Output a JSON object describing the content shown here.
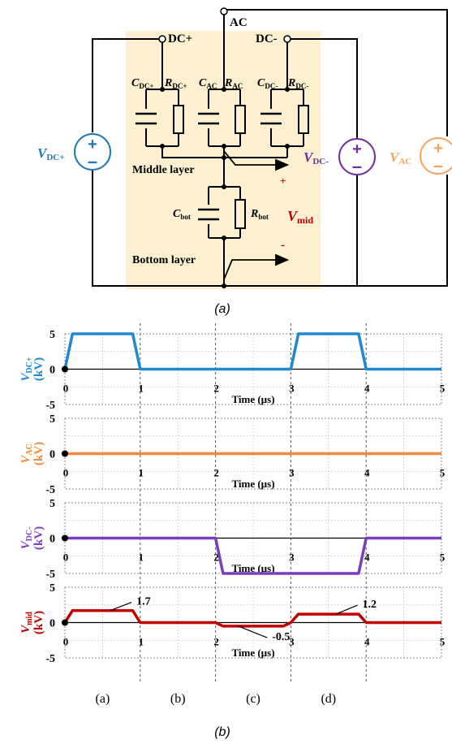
{
  "circuit": {
    "terminals": {
      "ac": "AC",
      "dc_plus": "DC+",
      "dc_minus": "DC-"
    },
    "components": {
      "c_dcp": {
        "main": "C",
        "sub": "DC+"
      },
      "r_dcp": {
        "main": "R",
        "sub": "DC+"
      },
      "c_ac": {
        "main": "C",
        "sub": "AC"
      },
      "r_ac": {
        "main": "R",
        "sub": "AC"
      },
      "c_dcm": {
        "main": "C",
        "sub": "DC-"
      },
      "r_dcm": {
        "main": "R",
        "sub": "DC-"
      },
      "c_bot": {
        "main": "C",
        "sub": "bot"
      },
      "r_bot": {
        "main": "R",
        "sub": "bot"
      }
    },
    "sources": {
      "vdcp": {
        "main": "V",
        "sub": "DC+",
        "color": "#1f77b4"
      },
      "vdcm": {
        "main": "V",
        "sub": "DC-",
        "color": "#7030a0"
      },
      "vac": {
        "main": "V",
        "sub": "AC",
        "color": "#f4a460"
      }
    },
    "layers": {
      "middle": "Middle layer",
      "bottom": "Bottom layer"
    },
    "vmid": {
      "main": "V",
      "sub": "mid",
      "plus": "+",
      "minus": "-",
      "color": "#c00000"
    },
    "background_color": "#fdf0d0"
  },
  "captions": {
    "a": "(a)",
    "b": "(b)"
  },
  "chart_data": {
    "type": "line",
    "x_label": "Time (µs)",
    "x_ticks": [
      "0",
      "1",
      "2",
      "3",
      "4",
      "5"
    ],
    "y_ticks": [
      "5",
      "0",
      "-5"
    ],
    "xlim": [
      0,
      5
    ],
    "ylim": [
      -5,
      5
    ],
    "grid": true,
    "phase_labels": [
      "(a)",
      "(b)",
      "(c)",
      "(d)"
    ],
    "plots": [
      {
        "name_main": "V",
        "name_sub": "DC+",
        "unit": "(kV)",
        "color": "#1e88d0",
        "x": [
          0,
          0.1,
          0.9,
          1.0,
          3.0,
          3.1,
          3.9,
          4.0,
          5.0
        ],
        "y": [
          0,
          5,
          5,
          0,
          0,
          5,
          5,
          0,
          0
        ]
      },
      {
        "name_main": "V",
        "name_sub": "AC",
        "unit": "(kV)",
        "color": "#f08a3c",
        "x": [
          0,
          5
        ],
        "y": [
          0,
          0
        ]
      },
      {
        "name_main": "V",
        "name_sub": "DC-",
        "unit": "(kV)",
        "color": "#7b3fbe",
        "x": [
          0,
          2.0,
          2.1,
          2.9,
          3.0,
          3.9,
          4.0,
          5.0
        ],
        "y": [
          0,
          0,
          -5,
          -5,
          -5,
          -5,
          0,
          0
        ]
      },
      {
        "name_main": "V",
        "name_sub": "mid",
        "unit": "(kV)",
        "color": "#c00000",
        "x": [
          0,
          0.1,
          0.9,
          1.0,
          2.0,
          2.1,
          2.9,
          3.0,
          3.1,
          3.9,
          4.0,
          5.0
        ],
        "y": [
          0,
          1.7,
          1.7,
          0,
          0,
          -0.5,
          -0.5,
          0,
          1.2,
          1.2,
          0,
          0
        ],
        "annotations": [
          "1.7",
          "-0.5",
          "1.2"
        ]
      }
    ]
  }
}
